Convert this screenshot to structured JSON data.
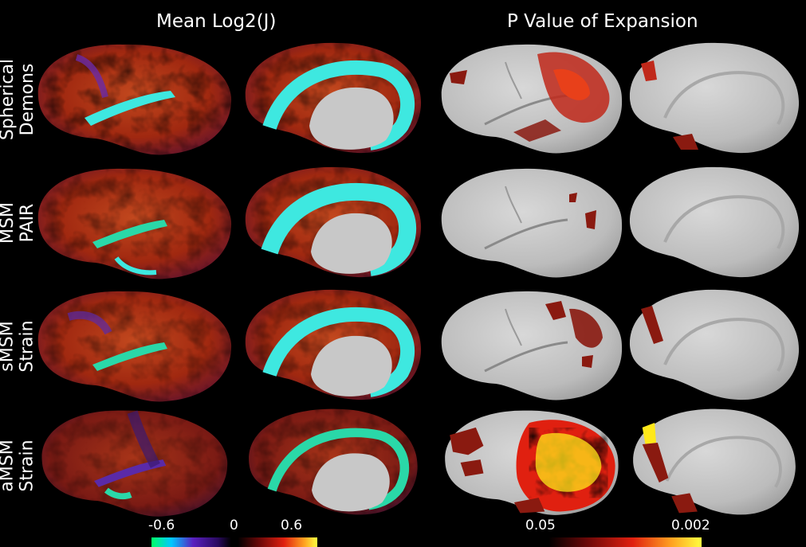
{
  "titles": {
    "left": "Mean Log2(J)",
    "right": "P Value of Expansion"
  },
  "rows": [
    {
      "line1": "Spherical",
      "line2": "Demons"
    },
    {
      "line1": "MSM",
      "line2": "PAIR"
    },
    {
      "line1": "sMSM",
      "line2": "Strain"
    },
    {
      "line1": "aMSM",
      "line2": "Strain"
    }
  ],
  "colorbars": {
    "log2j": {
      "labels": [
        "-0.6",
        "0",
        "0.6"
      ]
    },
    "pvalue": {
      "labels": [
        "0.05",
        "0.002"
      ]
    }
  },
  "colors": {
    "background": "#000000",
    "cortex_gray": "#c8c8c8",
    "sig_dark_red": "#8a1a10",
    "sig_red": "#e02010",
    "sig_yellow": "#ffe81a",
    "map_cyan": "#3ee8e0",
    "map_purple": "#4a2a9a"
  }
}
